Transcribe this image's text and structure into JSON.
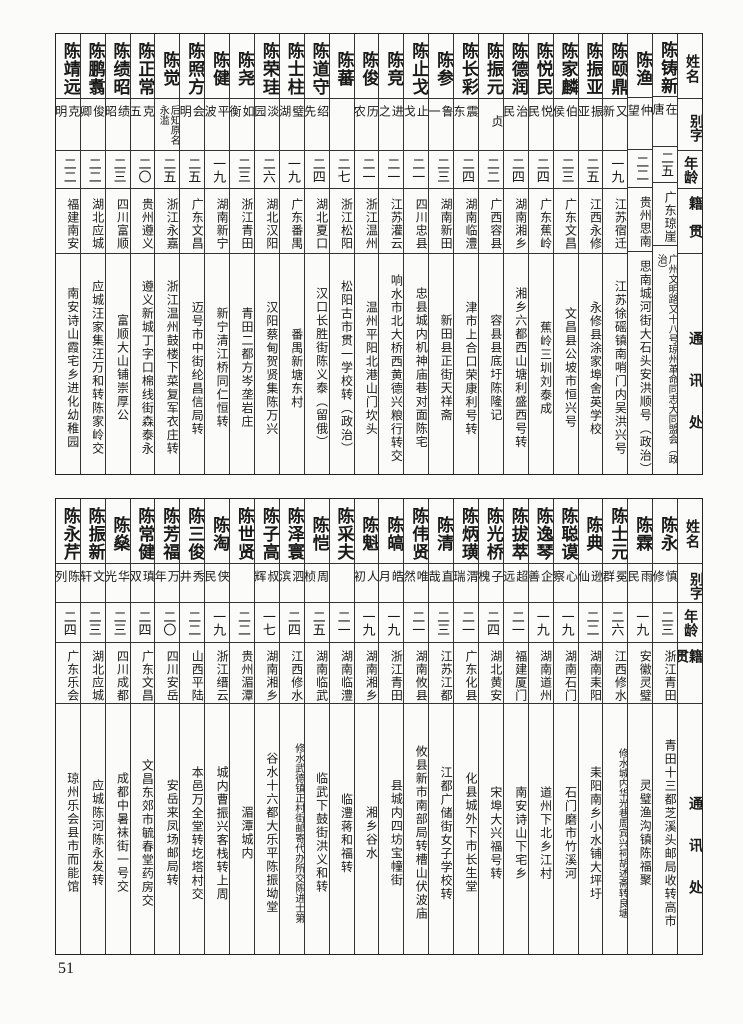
{
  "header": {
    "name": "姓名",
    "alias": "别字",
    "age": "年龄",
    "origin": "籍贯",
    "address": "通讯处"
  },
  "top_table": [
    {
      "name": "陈铸新",
      "alias": "在唐",
      "age": "二五",
      "origin": "广东琼崖",
      "address": "广州文明路又十八号琼州革命同志大同盟会（政治）"
    },
    {
      "name": "陈渔",
      "alias": "仲望",
      "age": "二二",
      "origin": "贵州思南",
      "address": "思南城河街大石头安洪顺号（政治）"
    },
    {
      "name": "陈颐鼎",
      "alias": "又新",
      "age": "一九",
      "origin": "江苏宿迁",
      "address": "江苏徐磘镇南哨门内吴洪兴号"
    },
    {
      "name": "陈振亚",
      "alias": "振亚",
      "age": "二五",
      "origin": "江西永修",
      "address": "永修县涂家埠舍英学校"
    },
    {
      "name": "陈家麟",
      "alias": "伯侯",
      "age": "二三",
      "origin": "广东文昌",
      "address": "文昌县公坡市恒兴号"
    },
    {
      "name": "陈悦民",
      "alias": "悦民",
      "age": "二四",
      "origin": "广东蕉岭",
      "address": "蕉岭三圳刘泰成"
    },
    {
      "name": "陈德润",
      "alias": "治民",
      "age": "二四",
      "origin": "湖南湘乡",
      "address": "湘乡六都西山塘利盛西号转"
    },
    {
      "name": "陈振元",
      "alias": "贞",
      "age": "二二",
      "origin": "广西容县",
      "address": "容县县底圩陈隆记"
    },
    {
      "name": "陈长彩",
      "alias": "震东",
      "age": "二四",
      "origin": "湖南临澧",
      "address": "津市上合口荣康利号转"
    },
    {
      "name": "陈参",
      "alias": "鲁一",
      "age": "二三",
      "origin": "湖南新田",
      "address": "新田县正街天祥斋"
    },
    {
      "name": "陈止戈",
      "alias": "止戈",
      "age": "二一",
      "origin": "四川忠县",
      "address": "忠县城内机神庙巷对面陈宅"
    },
    {
      "name": "陈竞",
      "alias": "进之",
      "age": "二一",
      "origin": "江苏灌云",
      "address": "响水市北大桥西黄德兴粮行转交"
    },
    {
      "name": "陈俊",
      "alias": "历农",
      "age": "二一",
      "origin": "浙江温州",
      "address": "温州平阳北港山门坎头"
    },
    {
      "name": "陈蕃",
      "alias": "",
      "age": "二七",
      "origin": "浙江松阳",
      "address": "松阳古市贯一学校转（政治）"
    },
    {
      "name": "陈道守",
      "alias": "绍先",
      "age": "二四",
      "origin": "湖北夏口",
      "address": "汉口长胜街陈义泰（留俄）"
    },
    {
      "name": "陈士柱",
      "alias": "璧湖",
      "age": "一九",
      "origin": "广东番禺",
      "address": "番禺新塘东村"
    },
    {
      "name": "陈荣珪",
      "alias": "淡园",
      "age": "二六",
      "origin": "湖北汉阳",
      "address": "汉阳蔡甸贺贤集陈万兴"
    },
    {
      "name": "陈尧",
      "alias": "如衡",
      "age": "二三",
      "origin": "浙江青田",
      "address": "青田二都方岑垄岩庄"
    },
    {
      "name": "陈健",
      "alias": "平波",
      "age": "一九",
      "origin": "湖南新宁",
      "address": "新宁清江桥同仁恒转"
    },
    {
      "name": "陈照方",
      "alias": "会明",
      "age": "二五",
      "origin": "广东文昌",
      "address": "迈号市中街纶昌信局转"
    },
    {
      "name": "陈觉",
      "alias": "后知原名永滥",
      "age": "二五",
      "origin": "浙江永嘉",
      "address": "浙江温州鼓楼下菜复军衣庄转"
    },
    {
      "name": "陈正常",
      "alias": "克五",
      "age": "二〇",
      "origin": "贵州遵义",
      "address": "遵义新城丁字口棉线街森泰永"
    },
    {
      "name": "陈绩昭",
      "alias": "绩昭",
      "age": "二三",
      "origin": "四川富顺",
      "address": "富顺大山铺崇厚公"
    },
    {
      "name": "陈鹏翥",
      "alias": "俊卿",
      "age": "二二",
      "origin": "湖北应城",
      "address": "应城汪家集汪万和转陈家岭交"
    },
    {
      "name": "陈靖远",
      "alias": "克明",
      "age": "二二",
      "origin": "福建南安",
      "address": "南安诗山霞宅乡进化幼稚园"
    }
  ],
  "bottom_table": [
    {
      "name": "陈永",
      "alias": "慎修",
      "age": "二三",
      "origin": "浙江青田",
      "address": "青田十三都芝溪头邮局收转高市"
    },
    {
      "name": "陈霖",
      "alias": "雨民",
      "age": "一九",
      "origin": "安徽灵璧",
      "address": "灵璧渔沟镇陈福聚"
    },
    {
      "name": "陈士元",
      "alias": "冕群",
      "age": "二六",
      "origin": "江西修水",
      "address": "修水城内华光巷周宾兴祠胡述斋转良塘"
    },
    {
      "name": "陈典",
      "alias": "逊仙",
      "age": "二二",
      "origin": "湖南耒阳",
      "address": "耒阳南乡小水铺大坪圩"
    },
    {
      "name": "陈聪谟",
      "alias": "心察",
      "age": "一九",
      "origin": "湖南石门",
      "address": "石门磨市竹溪河"
    },
    {
      "name": "陈逸琴",
      "alias": "企善",
      "age": "一九",
      "origin": "湖南道州",
      "address": "道州下北乡江村"
    },
    {
      "name": "陈拔萃",
      "alias": "超远",
      "age": "二一",
      "origin": "福建厦门",
      "address": "南安诗山下宅乡"
    },
    {
      "name": "陈光桥",
      "alias": "子槐",
      "age": "二四",
      "origin": "湖北黄安",
      "address": "宋埠大兴福号转"
    },
    {
      "name": "陈炳璜",
      "alias": "渭瑞",
      "age": "二一",
      "origin": "广东化县",
      "address": "化县城外下市长生堂"
    },
    {
      "name": "陈清",
      "alias": "直哉",
      "age": "二三",
      "origin": "江苏江都",
      "address": "江都广储街女子学校转"
    },
    {
      "name": "陈伟贤",
      "alias": "唯然",
      "age": "二一",
      "origin": "湖南攸县",
      "address": "攸县新市南部局转槽山伏波庙"
    },
    {
      "name": "陈皜",
      "alias": "皓月",
      "age": "一九",
      "origin": "浙江青田",
      "address": "县城内四坊宝幢街"
    },
    {
      "name": "陈魁",
      "alias": "人初",
      "age": "一九",
      "origin": "湖南湘乡",
      "address": "湘乡谷水"
    },
    {
      "name": "陈采夫",
      "alias": "",
      "age": "二一",
      "origin": "湖南临澧",
      "address": "临澧蒋和福转"
    },
    {
      "name": "陈恺",
      "alias": "周桢",
      "age": "二五",
      "origin": "湖南临武",
      "address": "临武下鼓街洪义和转"
    },
    {
      "name": "陈泽寰",
      "alias": "泗滨",
      "age": "二四",
      "origin": "江西修水",
      "address": "修水武德镇正村街邮寄代办所交陈进士第"
    },
    {
      "name": "陈子高",
      "alias": "叔辉",
      "age": "一七",
      "origin": "湖南湘乡",
      "address": "谷水十六都大乐平陈振坳堂"
    },
    {
      "name": "陈世贤",
      "alias": "",
      "age": "二二",
      "origin": "贵州湄潭",
      "address": "湄潭城内"
    },
    {
      "name": "陈淘",
      "alias": "侠民",
      "age": "一九",
      "origin": "浙江缙云",
      "address": "城内曹振兴客栈转上周"
    },
    {
      "name": "陈三俊",
      "alias": "秀井",
      "age": "二二",
      "origin": "山西平陆",
      "address": "本邑万全堂转圪塔村交"
    },
    {
      "name": "陈芳福",
      "alias": "万年",
      "age": "二〇",
      "origin": "四川安岳",
      "address": "安岳来凤场邮局转"
    },
    {
      "name": "陈常健",
      "alias": "瑱双",
      "age": "二四",
      "origin": "广东文昌",
      "address": "文昌东郊市毓春堂药房交"
    },
    {
      "name": "陈燊",
      "alias": "华光",
      "age": "二三",
      "origin": "四川成都",
      "address": "成都中暑袜街一号交"
    },
    {
      "name": "陈振新",
      "alias": "文轩",
      "age": "二三",
      "origin": "湖北应城",
      "address": "应城陈河陈永发转"
    },
    {
      "name": "陈永芹",
      "alias": "陈列",
      "age": "二四",
      "origin": "广东乐会",
      "address": "琼州乐会县市而能馆"
    }
  ],
  "page_number": "51"
}
